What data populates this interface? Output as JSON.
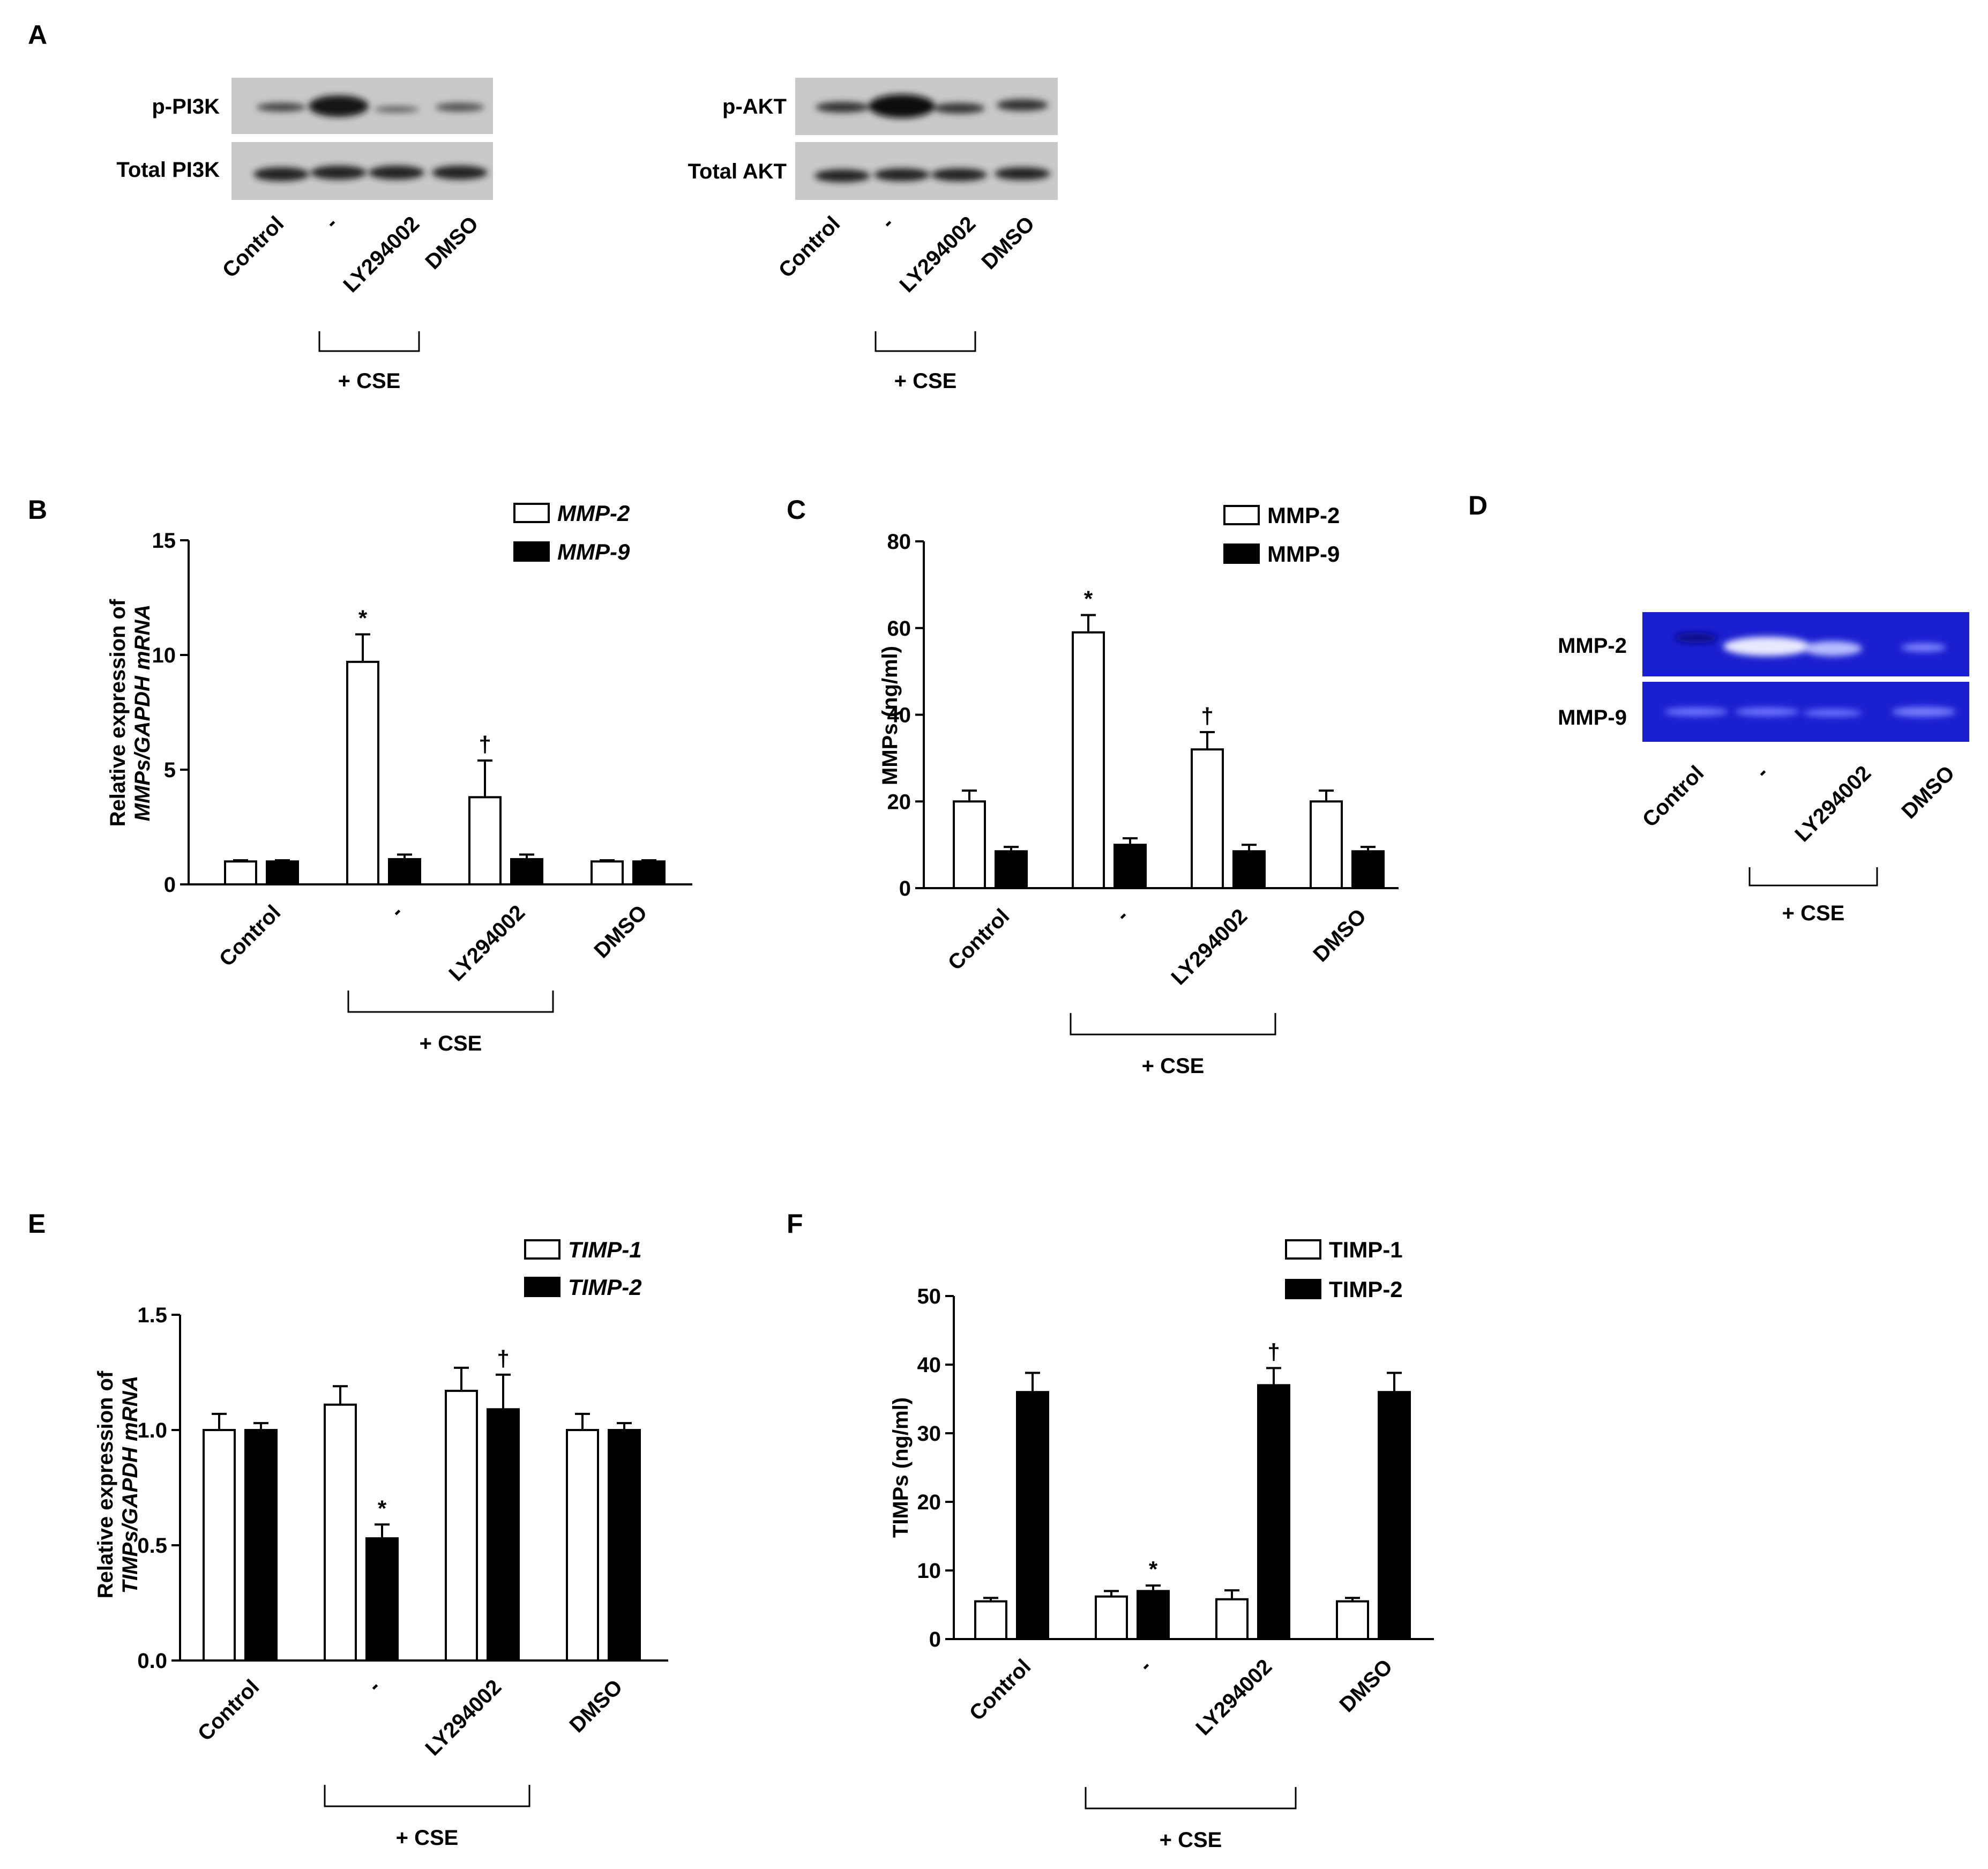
{
  "figure": {
    "panel_letters": [
      "A",
      "B",
      "C",
      "D",
      "E",
      "F"
    ],
    "group_bracket_label": "+ CSE",
    "conditions": [
      "Control",
      "-",
      "LY294002",
      "DMSO"
    ]
  },
  "western_blots": [
    {
      "row_labels": [
        "p-PI3K",
        "Total PI3K"
      ]
    },
    {
      "row_labels": [
        "p-AKT",
        "Total AKT"
      ]
    }
  ],
  "zymography": {
    "row_labels": [
      "MMP-2",
      "MMP-9"
    ]
  },
  "colors": {
    "gel_blue": "#1a1fd0",
    "blot_gray": "#c9c9c9",
    "band_dark": "#2a2a2a",
    "bar_open": "#ffffff",
    "bar_filled": "#000000"
  },
  "chart_data": [
    {
      "panel": "B",
      "type": "bar",
      "categories": [
        "Control",
        "-",
        "LY294002",
        "DMSO"
      ],
      "ylabel_line1": "Relative expression of",
      "ylabel_line2": "MMPs/GAPDH mRNA",
      "ylim": [
        0,
        15
      ],
      "yticks": [
        0,
        5,
        10,
        15
      ],
      "series": [
        {
          "name": "MMP-2",
          "fill": "open",
          "values": [
            1.0,
            9.7,
            3.8,
            1.0
          ],
          "errors": [
            0.05,
            1.2,
            1.6,
            0.05
          ]
        },
        {
          "name": "MMP-9",
          "fill": "filled",
          "values": [
            1.0,
            1.1,
            1.1,
            1.0
          ],
          "errors": [
            0.05,
            0.2,
            0.2,
            0.05
          ]
        }
      ],
      "annotations": [
        {
          "series": 0,
          "category": 1,
          "text": "*"
        },
        {
          "series": 0,
          "category": 2,
          "text": "†"
        }
      ]
    },
    {
      "panel": "C",
      "type": "bar",
      "categories": [
        "Control",
        "-",
        "LY294002",
        "DMSO"
      ],
      "ylabel_line1": "MMPs (ng/ml)",
      "ylim": [
        0,
        80
      ],
      "yticks": [
        0,
        20,
        40,
        60,
        80
      ],
      "series": [
        {
          "name": "MMP-2",
          "fill": "open",
          "values": [
            20,
            59,
            32,
            20
          ],
          "errors": [
            2.5,
            4,
            4,
            2.5
          ]
        },
        {
          "name": "MMP-9",
          "fill": "filled",
          "values": [
            8.5,
            10,
            8.5,
            8.5
          ],
          "errors": [
            1,
            1.5,
            1.5,
            1
          ]
        }
      ],
      "annotations": [
        {
          "series": 0,
          "category": 1,
          "text": "*"
        },
        {
          "series": 0,
          "category": 2,
          "text": "†"
        }
      ]
    },
    {
      "panel": "E",
      "type": "bar",
      "categories": [
        "Control",
        "-",
        "LY294002",
        "DMSO"
      ],
      "ylabel_line1": "Relative expression of",
      "ylabel_line2": "TIMPs/GAPDH mRNA",
      "ylim": [
        0,
        1.5
      ],
      "yticks": [
        "0.0",
        "0.5",
        "1.0",
        "1.5"
      ],
      "series": [
        {
          "name": "TIMP-1",
          "fill": "open",
          "values": [
            1.0,
            1.11,
            1.17,
            1.0
          ],
          "errors": [
            0.07,
            0.08,
            0.1,
            0.07
          ]
        },
        {
          "name": "TIMP-2",
          "fill": "filled",
          "values": [
            1.0,
            0.53,
            1.09,
            1.0
          ],
          "errors": [
            0.03,
            0.06,
            0.15,
            0.03
          ]
        }
      ],
      "annotations": [
        {
          "series": 1,
          "category": 1,
          "text": "*"
        },
        {
          "series": 1,
          "category": 2,
          "text": "†"
        }
      ]
    },
    {
      "panel": "F",
      "type": "bar",
      "categories": [
        "Control",
        "-",
        "LY294002",
        "DMSO"
      ],
      "ylabel_line1": "TIMPs (ng/ml)",
      "ylim": [
        0,
        50
      ],
      "yticks": [
        0,
        10,
        20,
        30,
        40,
        50
      ],
      "series": [
        {
          "name": "TIMP-1",
          "fill": "open",
          "values": [
            5.5,
            6.2,
            5.8,
            5.5
          ],
          "errors": [
            0.5,
            0.8,
            1.3,
            0.5
          ]
        },
        {
          "name": "TIMP-2",
          "fill": "filled",
          "values": [
            36,
            7,
            37,
            36
          ],
          "errors": [
            2.8,
            0.8,
            2.5,
            2.8
          ]
        }
      ],
      "annotations": [
        {
          "series": 1,
          "category": 1,
          "text": "*"
        },
        {
          "series": 1,
          "category": 2,
          "text": "†"
        }
      ]
    }
  ]
}
